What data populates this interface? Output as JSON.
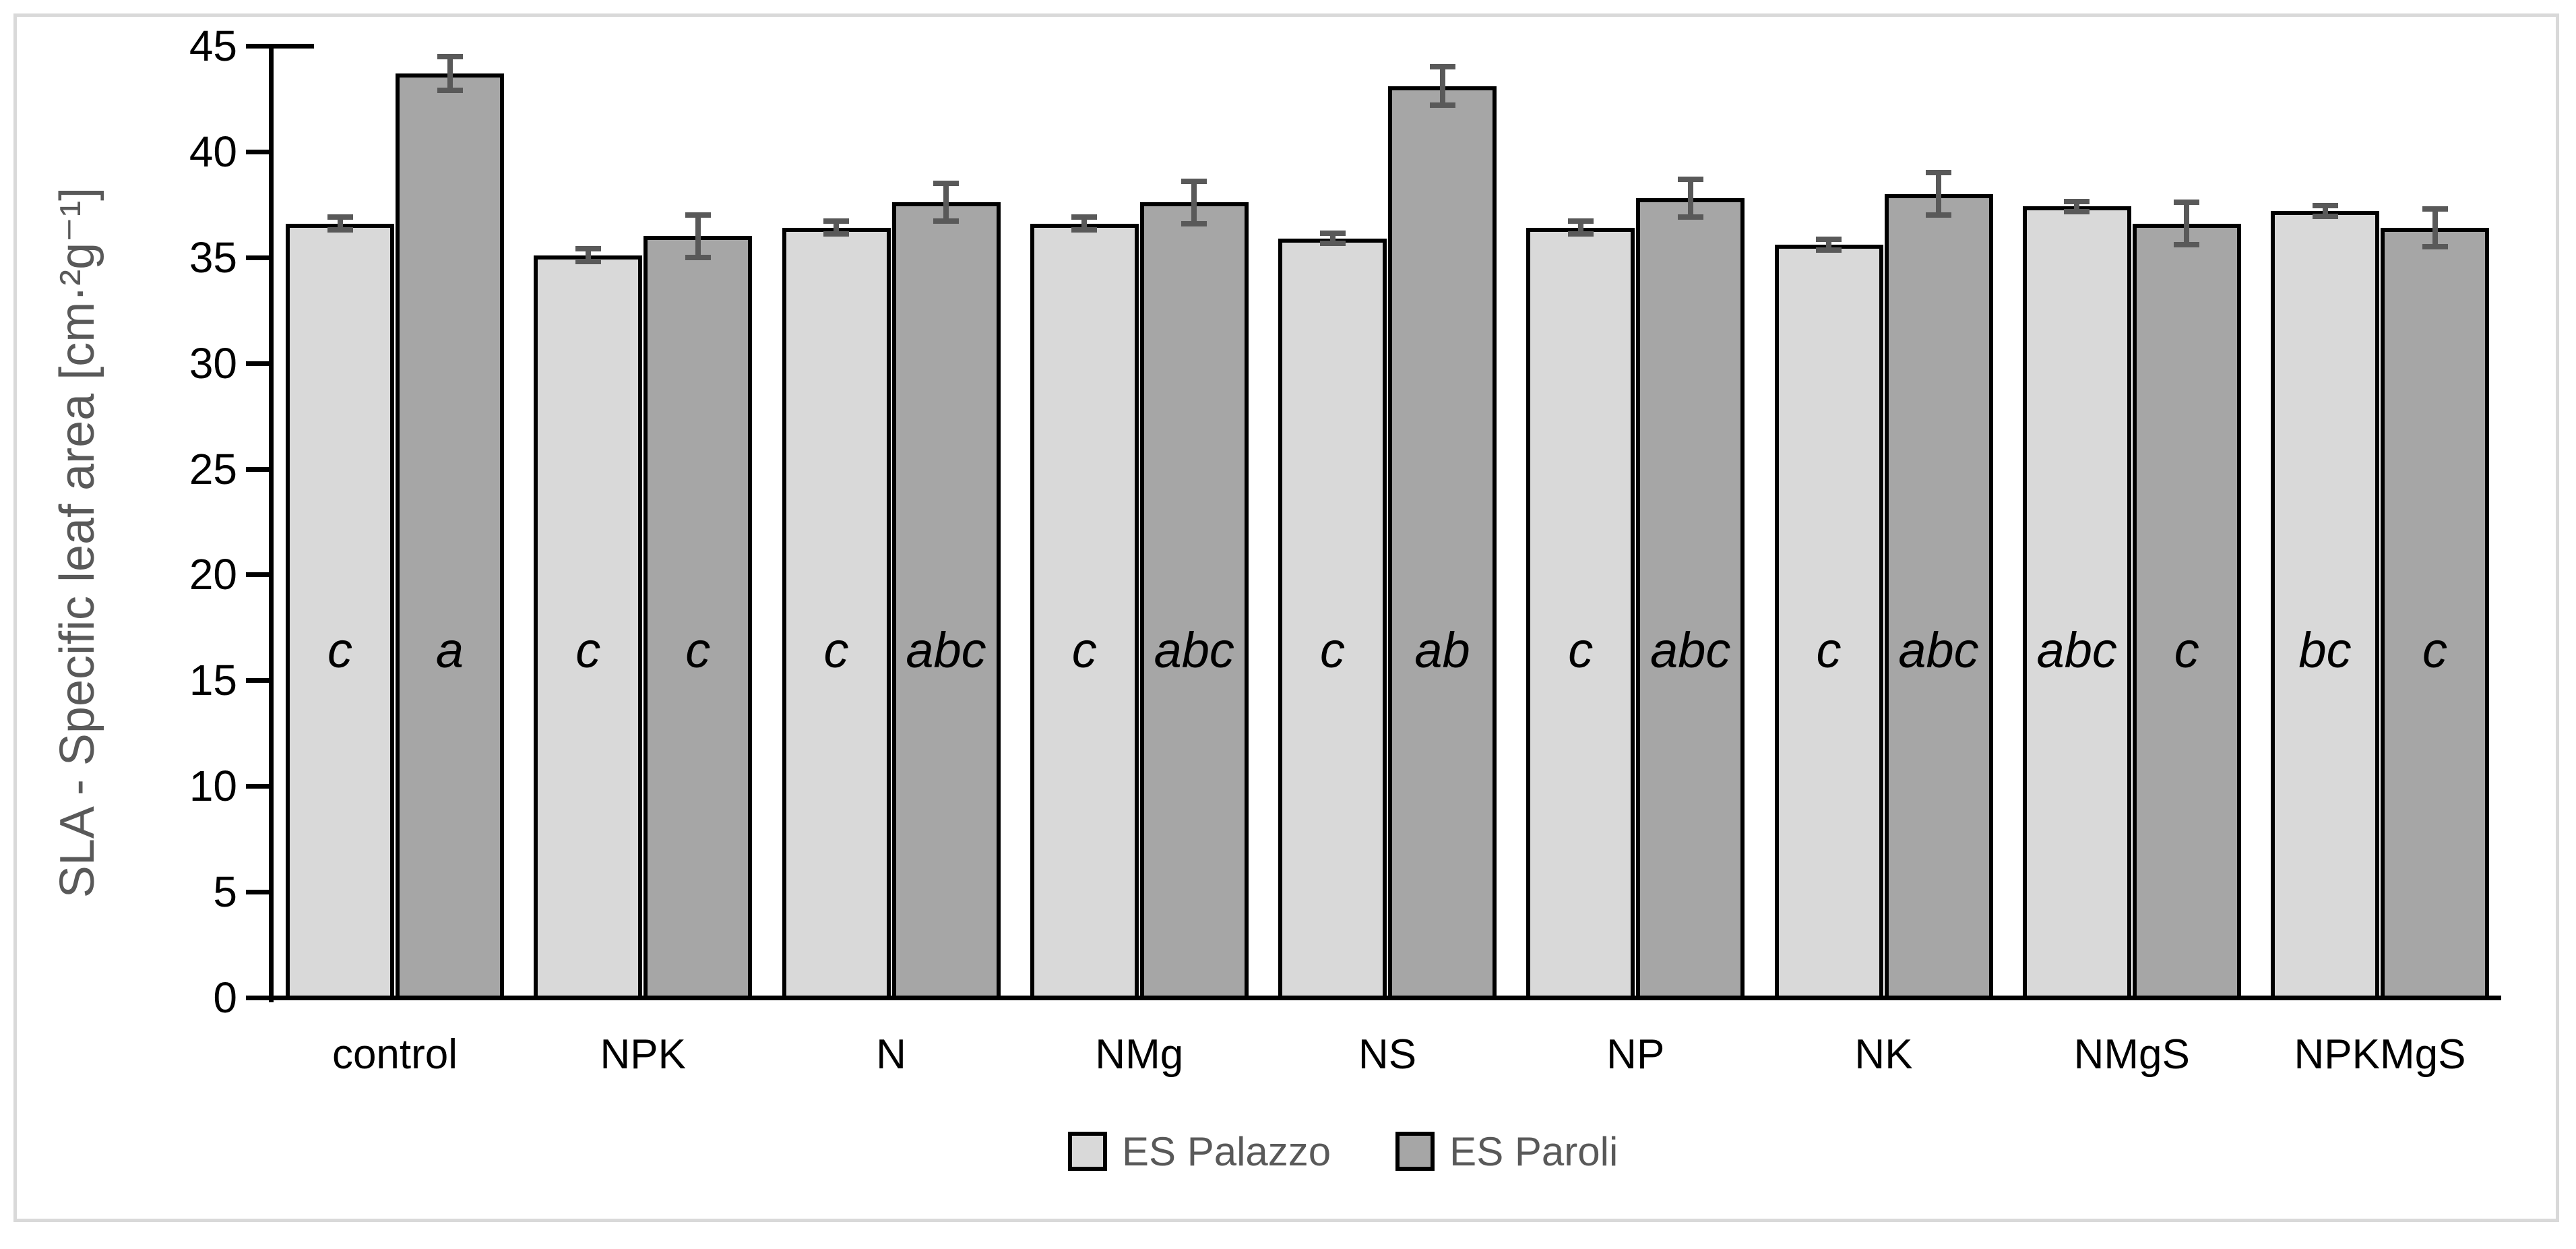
{
  "figure": {
    "background": "#ffffff",
    "border_color": "#d9d9d9"
  },
  "chart_data": {
    "type": "bar",
    "title": "",
    "xlabel": "",
    "ylabel": "SLA - Specific leaf area [cm·²g⁻¹]",
    "ylim": [
      0,
      45
    ],
    "yticks": [
      0,
      5,
      10,
      15,
      20,
      25,
      30,
      35,
      40,
      45
    ],
    "grid": false,
    "legend_position": "bottom-center",
    "categories": [
      "control",
      "NPK",
      "N",
      "NMg",
      "NS",
      "NP",
      "NK",
      "NMgS",
      "NPKMgS"
    ],
    "series": [
      {
        "name": "ES Palazzo",
        "color": "#d9d9d9",
        "values": [
          36.6,
          35.1,
          36.4,
          36.6,
          35.9,
          36.4,
          35.6,
          37.4,
          37.2
        ],
        "errors": [
          0.3,
          0.3,
          0.3,
          0.3,
          0.25,
          0.3,
          0.25,
          0.25,
          0.25
        ],
        "letters": [
          "c",
          "c",
          "c",
          "c",
          "c",
          "c",
          "c",
          "abc",
          "bc"
        ]
      },
      {
        "name": "ES Paroli",
        "color": "#a6a6a6",
        "values": [
          43.7,
          36.0,
          37.6,
          37.6,
          43.1,
          37.8,
          38.0,
          36.6,
          36.4
        ],
        "errors": [
          0.8,
          1.0,
          0.9,
          1.0,
          0.9,
          0.9,
          1.0,
          1.0,
          0.9
        ],
        "letters": [
          "a",
          "c",
          "abc",
          "abc",
          "ab",
          "abc",
          "abc",
          "c",
          "c"
        ]
      }
    ],
    "bar_border_color": "#000000",
    "error_bar_color": "#595959",
    "significance_letters_style": "italic"
  }
}
